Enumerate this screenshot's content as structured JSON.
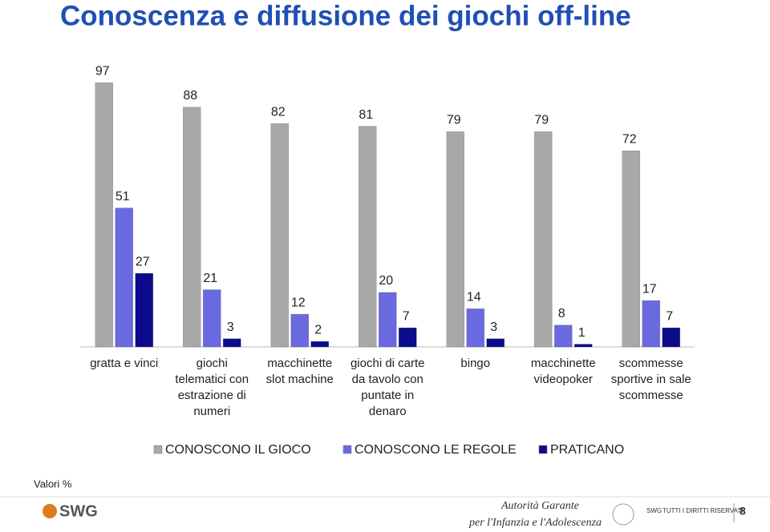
{
  "chart_data": {
    "type": "bar",
    "title": "Conoscenza e diffusione dei giochi off-line",
    "categories": [
      "gratta e vinci",
      "giochi telematici con estrazione di numeri",
      "macchinette slot machine",
      "giochi di carte da tavolo con puntate in denaro",
      "bingo",
      "macchinette videopoker",
      "scommesse sportive in sale scommesse"
    ],
    "series": [
      {
        "name": "CONOSCONO IL GIOCO",
        "color": "#a8a8a8",
        "values": [
          97,
          88,
          82,
          81,
          79,
          79,
          72
        ]
      },
      {
        "name": "CONOSCONO LE REGOLE",
        "color": "#6a6ae0",
        "values": [
          51,
          21,
          12,
          20,
          14,
          8,
          17
        ]
      },
      {
        "name": "PRATICANO",
        "color": "#0b0b8c",
        "values": [
          27,
          3,
          2,
          7,
          3,
          1,
          7
        ]
      }
    ],
    "ylim": [
      0,
      100
    ],
    "footnote": "Valori %"
  },
  "footer": {
    "brand": "SWG",
    "authority": [
      "Autorità Garante",
      "per l'Infanzia e l'Adolescenza"
    ],
    "copyright_brand": "SWG",
    "copyright": "TUTTI I DIRITTI RISERVATI",
    "page": 8
  }
}
